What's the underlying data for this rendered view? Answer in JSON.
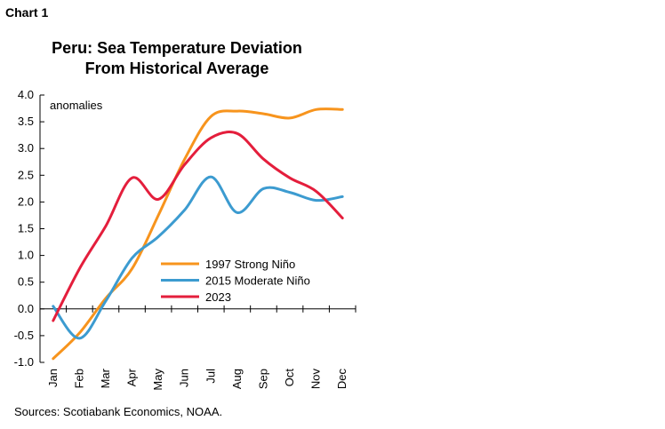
{
  "header": {
    "chart_label": "Chart 1"
  },
  "footer": {
    "source": "Sources: Scotiabank Economics, NOAA."
  },
  "chart_data": {
    "type": "line",
    "title": "Peru: Sea Temperature Deviation",
    "subtitle": "From Historical Average",
    "unit_label": "anomalies",
    "categories": [
      "Jan",
      "Feb",
      "Mar",
      "Apr",
      "May",
      "Jun",
      "Jul",
      "Aug",
      "Sep",
      "Oct",
      "Nov",
      "Dec"
    ],
    "ylim": [
      -1.0,
      4.0
    ],
    "yticks": [
      "4.0",
      "3.5",
      "3.0",
      "2.5",
      "2.0",
      "1.5",
      "1.0",
      "0.5",
      "0.0",
      "-0.5",
      "-1.0"
    ],
    "grid": false,
    "legend_position": "bottom-right",
    "series": [
      {
        "name": "1997 Strong Niño",
        "color": "#F7941D",
        "values": [
          -0.93,
          -0.45,
          0.2,
          0.75,
          1.75,
          2.8,
          3.6,
          3.7,
          3.65,
          3.57,
          3.73,
          3.73
        ]
      },
      {
        "name": "2015 Moderate Niño",
        "color": "#3C9BD0",
        "values": [
          0.05,
          -0.55,
          0.15,
          0.95,
          1.35,
          1.85,
          2.47,
          1.8,
          2.25,
          2.18,
          2.03,
          2.1
        ]
      },
      {
        "name": "2023",
        "color": "#E41E3C",
        "values": [
          -0.22,
          0.75,
          1.55,
          2.45,
          2.05,
          2.7,
          3.2,
          3.28,
          2.8,
          2.45,
          2.2,
          1.7
        ]
      }
    ]
  }
}
